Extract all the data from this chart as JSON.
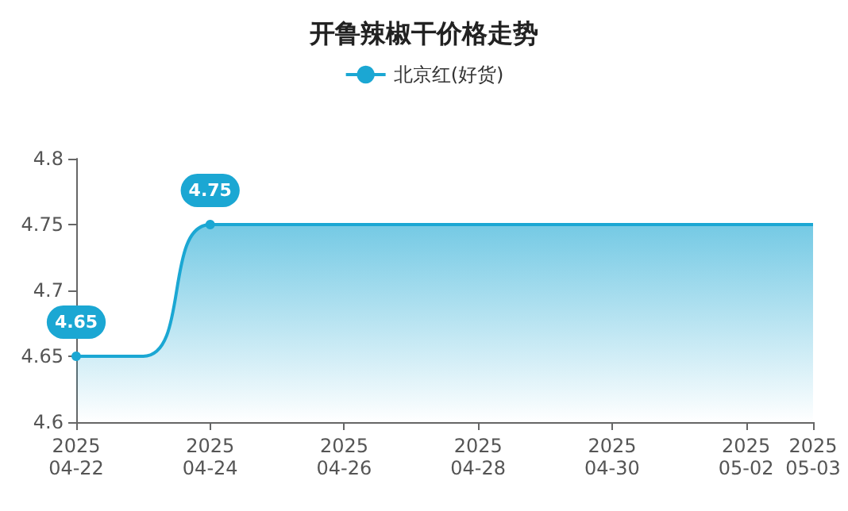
{
  "chart_data": {
    "type": "area",
    "title": "开鲁辣椒干价格走势",
    "legend": "top",
    "x": [
      "2025-04-22",
      "2025-04-23",
      "2025-04-24",
      "2025-04-25",
      "2025-04-26",
      "2025-04-27",
      "2025-04-28",
      "2025-04-29",
      "2025-04-30",
      "2025-05-01",
      "2025-05-02",
      "2025-05-03"
    ],
    "series": [
      {
        "name": "北京红(好货)",
        "color": "#1ba7d3",
        "values": [
          4.65,
          4.65,
          4.75,
          4.75,
          4.75,
          4.75,
          4.75,
          4.75,
          4.75,
          4.75,
          4.75,
          4.75
        ]
      }
    ],
    "xlim": [
      "2025-04-22",
      "2025-05-03"
    ],
    "xticks": [
      {
        "value": "2025-04-22",
        "label": "2025\n04-22"
      },
      {
        "value": "2025-04-24",
        "label": "2025\n04-24"
      },
      {
        "value": "2025-04-26",
        "label": "2025\n04-26"
      },
      {
        "value": "2025-04-28",
        "label": "2025\n04-28"
      },
      {
        "value": "2025-04-30",
        "label": "2025\n04-30"
      },
      {
        "value": "2025-05-02",
        "label": "2025\n05-02"
      },
      {
        "value": "2025-05-03",
        "label": "2025\n05-03"
      }
    ],
    "ylim": [
      4.6,
      4.8
    ],
    "yticks": [
      4.6,
      4.65,
      4.7,
      4.75,
      4.8
    ],
    "grid": false,
    "marker": "none",
    "annotations": [
      {
        "text": "4.65",
        "x": "2025-04-22",
        "y": 4.65
      },
      {
        "text": "4.75",
        "x": "2025-04-24",
        "y": 4.75
      }
    ]
  }
}
